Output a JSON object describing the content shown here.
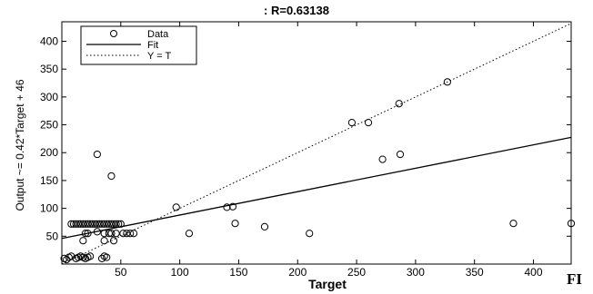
{
  "chart_data": {
    "type": "scatter",
    "title": ": R=0.63138",
    "xlabel": "Target",
    "ylabel": "Output ~= 0.42*Target + 46",
    "xlim": [
      0,
      432
    ],
    "ylim": [
      0,
      435
    ],
    "xticks": [
      50,
      100,
      150,
      200,
      250,
      300,
      350,
      400
    ],
    "yticks": [
      50,
      100,
      150,
      200,
      250,
      300,
      350,
      400
    ],
    "grid": false,
    "legend_position": "top-left",
    "legend": [
      "Data",
      "Fit",
      "Y = T"
    ],
    "fit": {
      "slope": 0.42,
      "intercept": 46
    },
    "points": [
      [
        2,
        10
      ],
      [
        4,
        8
      ],
      [
        6,
        12
      ],
      [
        8,
        14
      ],
      [
        12,
        10
      ],
      [
        14,
        12
      ],
      [
        16,
        14
      ],
      [
        18,
        12
      ],
      [
        20,
        10
      ],
      [
        22,
        12
      ],
      [
        24,
        14
      ],
      [
        34,
        10
      ],
      [
        36,
        14
      ],
      [
        38,
        12
      ],
      [
        8,
        72
      ],
      [
        10,
        72
      ],
      [
        12,
        72
      ],
      [
        14,
        72
      ],
      [
        16,
        72
      ],
      [
        18,
        72
      ],
      [
        20,
        72
      ],
      [
        22,
        72
      ],
      [
        24,
        72
      ],
      [
        26,
        72
      ],
      [
        28,
        72
      ],
      [
        30,
        72
      ],
      [
        32,
        72
      ],
      [
        34,
        72
      ],
      [
        36,
        72
      ],
      [
        38,
        72
      ],
      [
        40,
        72
      ],
      [
        42,
        72
      ],
      [
        44,
        72
      ],
      [
        46,
        72
      ],
      [
        48,
        72
      ],
      [
        50,
        72
      ],
      [
        20,
        55
      ],
      [
        22,
        55
      ],
      [
        30,
        58
      ],
      [
        36,
        55
      ],
      [
        40,
        55
      ],
      [
        42,
        55
      ],
      [
        46,
        55
      ],
      [
        52,
        55
      ],
      [
        55,
        55
      ],
      [
        58,
        55
      ],
      [
        61,
        55
      ],
      [
        18,
        42
      ],
      [
        36,
        42
      ],
      [
        44,
        42
      ],
      [
        30,
        197
      ],
      [
        42,
        158
      ],
      [
        97,
        102
      ],
      [
        108,
        55
      ],
      [
        140,
        102
      ],
      [
        145,
        103
      ],
      [
        147,
        73
      ],
      [
        172,
        67
      ],
      [
        210,
        55
      ],
      [
        246,
        254
      ],
      [
        260,
        254
      ],
      [
        272,
        188
      ],
      [
        286,
        288
      ],
      [
        287,
        197
      ],
      [
        327,
        327
      ],
      [
        383,
        73
      ],
      [
        432,
        73
      ]
    ]
  },
  "page": {
    "trailing_text": "FI"
  },
  "colors": {
    "axes": "#000000",
    "markers": "#000000",
    "background": "#ffffff"
  }
}
